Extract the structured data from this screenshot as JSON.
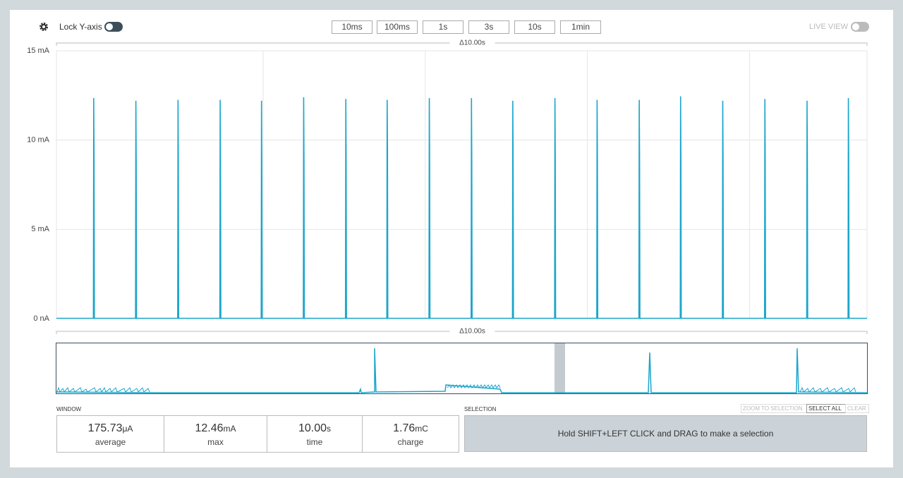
{
  "toolbar": {
    "lock_label": "Lock Y-axis",
    "buttons": [
      "10ms",
      "100ms",
      "1s",
      "3s",
      "10s",
      "1min"
    ],
    "live_view": "LIVE VIEW"
  },
  "chart_data": {
    "type": "line",
    "annotations": [
      "Δ10.00s",
      "Δ10.00s"
    ],
    "xlim": [
      0,
      10
    ],
    "xgrid": [
      2.55,
      4.55,
      6.55,
      8.55
    ],
    "ylim": [
      0,
      15
    ],
    "yticks": [
      {
        "value": 0,
        "label": "0 nA"
      },
      {
        "value": 5,
        "label": "5 mA"
      },
      {
        "value": 10,
        "label": "10 mA"
      },
      {
        "value": 15,
        "label": "15 mA"
      }
    ],
    "grid": true,
    "series": [
      {
        "color": "#1ba6cc",
        "x": [
          0,
          0.456,
          0.46,
          0.464,
          0.468,
          0.976,
          0.98,
          0.984,
          0.988,
          1.496,
          1.5,
          1.504,
          1.508,
          2.016,
          2.02,
          2.024,
          2.028,
          2.526,
          2.53,
          2.534,
          2.538,
          3.046,
          3.05,
          3.054,
          3.058,
          3.566,
          3.57,
          3.574,
          3.578,
          4.076,
          4.08,
          4.084,
          4.088,
          4.596,
          4.6,
          4.604,
          4.608,
          5.116,
          5.12,
          5.124,
          5.128,
          5.626,
          5.63,
          5.634,
          5.638,
          6.146,
          6.15,
          6.154,
          6.158,
          6.666,
          6.67,
          6.674,
          6.678,
          7.186,
          7.19,
          7.194,
          7.198,
          7.696,
          7.7,
          7.704,
          7.708,
          8.216,
          8.22,
          8.224,
          8.228,
          8.736,
          8.74,
          8.744,
          8.748,
          9.256,
          9.26,
          9.264,
          9.268,
          9.766,
          9.77,
          9.774,
          9.778,
          10
        ],
        "values": [
          0.02,
          0.02,
          12.35,
          8.8,
          0.02,
          0.02,
          12.2,
          8.8,
          0.02,
          0.02,
          12.25,
          8.7,
          0.02,
          0.02,
          12.25,
          8.8,
          0.02,
          0.02,
          12.2,
          8.2,
          0.02,
          0.02,
          12.4,
          8.8,
          0.02,
          0.02,
          12.3,
          8.7,
          0.02,
          0.02,
          12.25,
          9.4,
          0.02,
          0.02,
          12.35,
          8.6,
          0.02,
          0.02,
          12.35,
          8.8,
          0.02,
          0.02,
          12.2,
          8.4,
          0.02,
          0.02,
          12.35,
          8.8,
          0.02,
          0.02,
          12.25,
          8.8,
          0.02,
          0.02,
          12.25,
          8.8,
          0.02,
          0.02,
          12.45,
          8.8,
          0.02,
          0.02,
          12.2,
          8.8,
          0.02,
          0.02,
          12.3,
          8.8,
          0.02,
          0.02,
          12.2,
          8.8,
          0.02,
          0.02,
          12.35,
          8.8,
          0.02,
          0.02
        ]
      }
    ]
  },
  "window": {
    "title": "WINDOW",
    "stats": [
      {
        "value": "175.73",
        "unit": "μA",
        "label": "average"
      },
      {
        "value": "12.46",
        "unit": "mA",
        "label": "max"
      },
      {
        "value": "10.00",
        "unit": "s",
        "label": "time"
      },
      {
        "value": "1.76",
        "unit": "mC",
        "label": "charge"
      }
    ]
  },
  "selection": {
    "title": "SELECTION",
    "actions": [
      "ZOOM TO SELECTION",
      "SELECT ALL",
      "CLEAR"
    ],
    "hint": "Hold SHIFT+LEFT CLICK and DRAG to make a selection"
  }
}
